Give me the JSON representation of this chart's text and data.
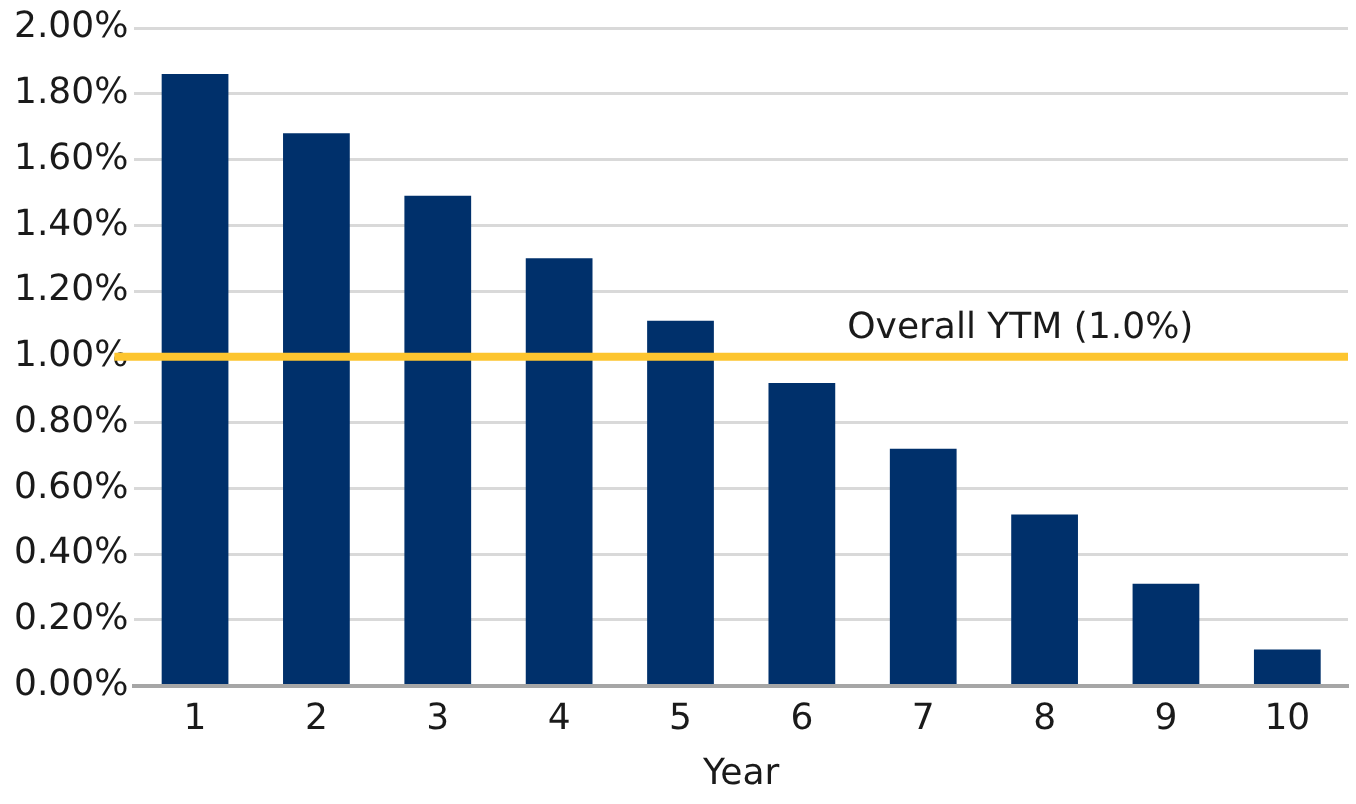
{
  "chart_data": {
    "type": "bar",
    "xlabel": "Year",
    "categories": [
      "1",
      "2",
      "3",
      "4",
      "5",
      "6",
      "7",
      "8",
      "9",
      "10"
    ],
    "values": [
      1.86,
      1.68,
      1.49,
      1.3,
      1.11,
      0.92,
      0.72,
      0.52,
      0.31,
      0.11
    ],
    "color": "#00306b",
    "ylim": [
      0,
      2
    ],
    "yticks": [
      {
        "value": 0,
        "label": "0.00%"
      },
      {
        "value": 0.2,
        "label": "0.20%"
      },
      {
        "value": 0.4,
        "label": "0.40%"
      },
      {
        "value": 0.6,
        "label": "0.60%"
      },
      {
        "value": 0.8,
        "label": "0.80%"
      },
      {
        "value": 1,
        "label": "1.00%"
      },
      {
        "value": 1.2,
        "label": "1.20%"
      },
      {
        "value": 1.4,
        "label": "1.40%"
      },
      {
        "value": 1.6,
        "label": "1.60%"
      },
      {
        "value": 1.8,
        "label": "1.80%"
      },
      {
        "value": 2,
        "label": "2.00%"
      }
    ],
    "ref_lines": [
      {
        "axis": "y",
        "value": 1,
        "label": "Overall YTM (1.0%)",
        "color": "#fdc52f"
      }
    ],
    "grid": "y",
    "legend": false
  }
}
